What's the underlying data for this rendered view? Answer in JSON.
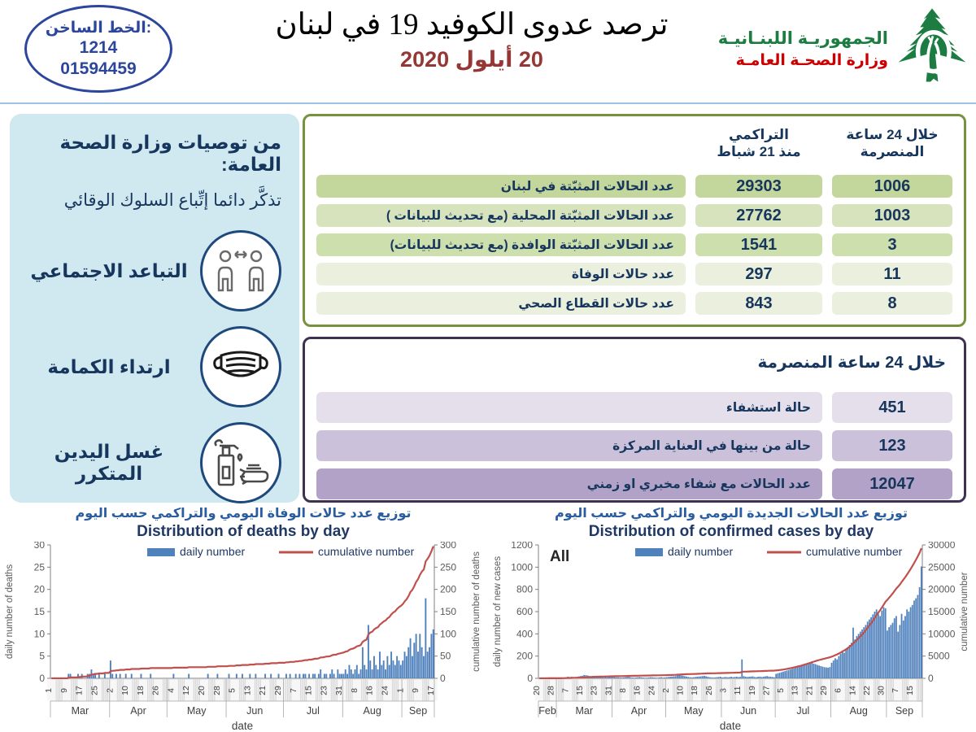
{
  "header": {
    "hotline": {
      "label": "الخط الساخن:",
      "line1": "1214",
      "line2": "01594459"
    },
    "title": "ترصد عدوى الكوفيد 19 في لبنان",
    "date": "20 أيلول 2020",
    "ministry": {
      "line1": "الجمهوريـة اللبنـانيـة",
      "line2": "وزارة الصحـة العامـة"
    },
    "logo_icon": "cedar-hands-icon"
  },
  "sidebar": {
    "heading": "من توصيات وزارة الصحة العامة:",
    "subheading": "تذكَّر دائما إتِّباع السلوك الوقائي",
    "items": [
      {
        "label": "التباعد الاجتماعي",
        "icon": "social-distancing-icon"
      },
      {
        "label": "ارتداء الكمامة",
        "icon": "face-mask-icon"
      },
      {
        "label": "غسل اليدين المتكرر",
        "icon": "hand-washing-icon"
      }
    ]
  },
  "green_table": {
    "border_color": "#76923c",
    "col_24h_line1": "خلال 24 ساعة",
    "col_24h_line2": "المنصرمة",
    "col_cum_line1": "التراكمي",
    "col_cum_line2": "منذ 21 شباط",
    "rows": [
      {
        "label": "عدد الحالات المثبّتة في لبنان",
        "cumulative": "29303",
        "last24": "1006",
        "shade": "#c3d69b"
      },
      {
        "label": "عدد الحالات المثبّتة المحلية  (مع تحديث للبيانات )",
        "cumulative": "27762",
        "last24": "1003",
        "shade": "#d6e3bc"
      },
      {
        "label": "عدد الحالات المثبّتة الوافدة (مع تحديث للبيانات)",
        "cumulative": "1541",
        "last24": "3",
        "shade": "#cedfae"
      },
      {
        "label": "عدد حالات الوفاة",
        "cumulative": "297",
        "last24": "11",
        "shade": "#eaf0dd"
      },
      {
        "label": "عدد حالات القطاع الصحي",
        "cumulative": "843",
        "last24": "8",
        "shade": "#eaf0dd"
      }
    ]
  },
  "purple_table": {
    "border_color": "#3f3151",
    "header": "خلال 24 ساعة المنصرمة",
    "rows": [
      {
        "label": "حالة استشفاء",
        "value": "451",
        "shade": "#e5dfec"
      },
      {
        "label": "حالة من بينها في العناية المركزة",
        "value": "123",
        "shade": "#ccc1da"
      },
      {
        "label": "عدد الحالات مع شفاء مخبري او زمني",
        "value": "12047",
        "shade": "#b2a2c7"
      }
    ]
  },
  "chart_data": [
    {
      "type": "bar",
      "title_ar": "توزيع عدد حالات  الوفاة اليومي والتراكمي حسب اليوم",
      "title_en": "Distribution of deaths by day",
      "legend": [
        {
          "label": "daily number",
          "color": "#4f81bd"
        },
        {
          "label": "cumulative number",
          "color": "#c0504d"
        }
      ],
      "xlabel": "date",
      "ylabel_left": "daily number of deaths",
      "ylabel_right": "cumulative number of deaths",
      "ylim_left": [
        0,
        30
      ],
      "ystep_left": 5,
      "ylim_right": [
        0,
        300
      ],
      "ystep_right": 50,
      "months": [
        {
          "name": "Mar",
          "days": 31
        },
        {
          "name": "Apr",
          "days": 30
        },
        {
          "name": "May",
          "days": 31
        },
        {
          "name": "Jun",
          "days": 30
        },
        {
          "name": "Jul",
          "days": 31
        },
        {
          "name": "Aug",
          "days": 31
        },
        {
          "name": "Sep",
          "days": 17
        }
      ],
      "tick_every": 8,
      "tick_labels": [
        1,
        9,
        17,
        25,
        2,
        10,
        18,
        26,
        4,
        12,
        20,
        28,
        5,
        13,
        21,
        29,
        7,
        15,
        23,
        31,
        8,
        16,
        24,
        1,
        9,
        17
      ],
      "bar_color": "#4f81bd",
      "line_color": "#c0504d",
      "daily": [
        0,
        0,
        0,
        0,
        0,
        0,
        0,
        0,
        0,
        1,
        1,
        0,
        0,
        0,
        1,
        0,
        1,
        0,
        0,
        1,
        1,
        2,
        1,
        1,
        0,
        1,
        0,
        0,
        1,
        0,
        0,
        4,
        1,
        0,
        1,
        0,
        1,
        0,
        0,
        1,
        0,
        0,
        1,
        0,
        0,
        0,
        0,
        1,
        0,
        0,
        0,
        0,
        1,
        0,
        0,
        0,
        0,
        0,
        0,
        0,
        0,
        0,
        0,
        0,
        1,
        0,
        0,
        0,
        0,
        0,
        0,
        0,
        1,
        0,
        0,
        0,
        0,
        0,
        0,
        0,
        0,
        0,
        1,
        0,
        0,
        0,
        0,
        1,
        0,
        0,
        0,
        0,
        0,
        1,
        0,
        0,
        0,
        1,
        0,
        0,
        1,
        0,
        0,
        0,
        1,
        0,
        0,
        1,
        0,
        0,
        0,
        0,
        1,
        0,
        0,
        1,
        0,
        0,
        0,
        1,
        0,
        0,
        0,
        1,
        0,
        1,
        0,
        0,
        1,
        0,
        1,
        0,
        1,
        1,
        0,
        1,
        0,
        1,
        1,
        0,
        1,
        2,
        0,
        1,
        1,
        0,
        1,
        2,
        1,
        0,
        2,
        1,
        1,
        1,
        2,
        1,
        3,
        2,
        1,
        2,
        3,
        1,
        2,
        7,
        3,
        2,
        12,
        4,
        2,
        5,
        3,
        2,
        6,
        3,
        4,
        2,
        5,
        3,
        6,
        4,
        3,
        5,
        4,
        3,
        4,
        6,
        5,
        7,
        9,
        5,
        8,
        10,
        6,
        10,
        7,
        5,
        18,
        6,
        7,
        10,
        11
      ]
    },
    {
      "type": "bar",
      "title_ar": "توزيع عدد الحالات الجديدة اليومي والتراكمي حسب اليوم",
      "title_en": "Distribution of confirmed cases by day",
      "annotation": "All",
      "legend": [
        {
          "label": "daily number",
          "color": "#4f81bd"
        },
        {
          "label": "cumulative number",
          "color": "#c0504d"
        }
      ],
      "xlabel": "date",
      "ylabel_left": "daily number of new cases",
      "ylabel_right": "cumulative number",
      "ylim_left": [
        0,
        1200
      ],
      "ystep_left": 200,
      "ylim_right": [
        0,
        30000
      ],
      "ystep_right": 5000,
      "months": [
        {
          "name": "Feb",
          "days": 10
        },
        {
          "name": "Mar",
          "days": 31
        },
        {
          "name": "Apr",
          "days": 30
        },
        {
          "name": "May",
          "days": 31
        },
        {
          "name": "Jun",
          "days": 30
        },
        {
          "name": "Jul",
          "days": 31
        },
        {
          "name": "Aug",
          "days": 31
        },
        {
          "name": "Sep",
          "days": 20
        }
      ],
      "tick_every": 8,
      "tick_labels": [
        20,
        28,
        7,
        15,
        23,
        31,
        8,
        16,
        24,
        2,
        10,
        18,
        26,
        3,
        11,
        19,
        27,
        5,
        13,
        21,
        29,
        6,
        14,
        22,
        30,
        7,
        15
      ],
      "bar_color": "#4f81bd",
      "line_color": "#c0504d",
      "daily": [
        3,
        1,
        0,
        2,
        1,
        3,
        0,
        3,
        2,
        3,
        3,
        4,
        2,
        6,
        8,
        10,
        15,
        12,
        14,
        9,
        11,
        13,
        17,
        21,
        23,
        30,
        28,
        25,
        20,
        16,
        22,
        18,
        14,
        12,
        15,
        10,
        8,
        12,
        9,
        11,
        13,
        12,
        10,
        8,
        9,
        7,
        6,
        8,
        10,
        12,
        14,
        9,
        7,
        6,
        8,
        10,
        12,
        9,
        7,
        5,
        6,
        8,
        10,
        9,
        7,
        6,
        5,
        8,
        10,
        6,
        8,
        10,
        12,
        14,
        16,
        18,
        20,
        25,
        30,
        28,
        24,
        20,
        16,
        12,
        10,
        8,
        10,
        12,
        14,
        16,
        18,
        20,
        22,
        18,
        14,
        10,
        8,
        6,
        8,
        10,
        12,
        14,
        8,
        10,
        12,
        9,
        11,
        14,
        10,
        12,
        15,
        11,
        13,
        170,
        20,
        15,
        12,
        14,
        16,
        18,
        12,
        10,
        14,
        16,
        12,
        15,
        18,
        20,
        16,
        14,
        12,
        9,
        40,
        45,
        50,
        55,
        60,
        65,
        70,
        75,
        80,
        85,
        90,
        95,
        100,
        105,
        110,
        115,
        120,
        125,
        130,
        135,
        140,
        132,
        128,
        120,
        115,
        110,
        105,
        100,
        98,
        96,
        101,
        140,
        160,
        180,
        170,
        200,
        220,
        250,
        230,
        260,
        280,
        300,
        320,
        456,
        350,
        380,
        400,
        420,
        440,
        460,
        480,
        510,
        530,
        550,
        575,
        600,
        620,
        580,
        560,
        610,
        640,
        629,
        430,
        460,
        480,
        500,
        540,
        560,
        420,
        480,
        580,
        520,
        560,
        620,
        600,
        640,
        660,
        700,
        720,
        750,
        820,
        1006
      ]
    }
  ]
}
